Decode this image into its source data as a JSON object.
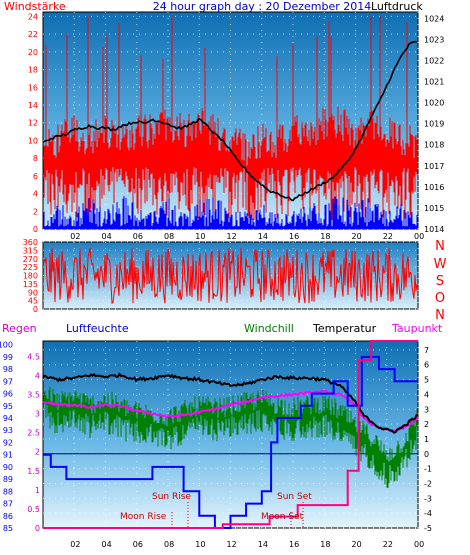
{
  "header": {
    "left_label": "Windstärke",
    "title": "24 hour graph day : 20 Dezember 2014",
    "right_label": "Luftdruck"
  },
  "directions": [
    "N",
    "W",
    "S",
    "O",
    "N"
  ],
  "bottom_header": {
    "regen": "Regen",
    "luftfeuchte": "Luftfeuchte",
    "windchill": "Windchill",
    "temperatur": "Temperatur",
    "taupunkt": "Taupunkt"
  },
  "annotations": {
    "moon_rise": "Moon Rise",
    "sun_rise": "Sun Rise",
    "moon_set": "Moon Set",
    "sun_set": "Sun Set"
  },
  "colors": {
    "wind": "#ff0000",
    "gust": "#0000ff",
    "pressure": "#000000",
    "temperature": "#000000",
    "windchill": "#008000",
    "dewpoint": "#ff00ff",
    "humidity": "#0000ff",
    "rain": "#ff0080",
    "left_axis": "#ff0000",
    "humidity_axis": "#0000ff",
    "rain_label": "#cc00cc"
  },
  "chart_data": [
    {
      "type": "line",
      "panel": "wind_pressure",
      "x_ticks": [
        "02",
        "04",
        "06",
        "08",
        "10",
        "12",
        "14",
        "16",
        "18",
        "20",
        "22",
        "00"
      ],
      "y_left": {
        "label": "Windstärke",
        "ticks": [
          0,
          2,
          4,
          6,
          8,
          10,
          12,
          14,
          16,
          18,
          20,
          22,
          24
        ],
        "range": [
          0,
          24.5
        ]
      },
      "y_right": {
        "label": "Luftdruck",
        "ticks": [
          1014,
          1015,
          1016,
          1017,
          1018,
          1019,
          1020,
          1021,
          1022,
          1023,
          1024
        ],
        "range": [
          1014,
          1024.3
        ]
      },
      "series": [
        {
          "axis": "right",
          "hours": [
            0.0,
            0.5,
            1.0,
            1.5,
            2.0,
            2.5,
            3.0,
            3.5,
            4.0,
            4.5,
            5.0,
            5.5,
            6.0,
            6.5,
            7.0,
            7.5,
            8.0,
            8.5,
            9.0,
            9.5,
            10.0,
            10.5,
            11.0,
            11.5,
            12.0,
            12.5,
            13.0,
            13.5,
            14.0,
            14.5,
            15.0,
            15.5,
            16.0,
            16.5,
            17.0,
            17.5,
            18.0,
            18.5,
            19.0,
            19.5,
            20.0,
            20.5,
            21.0,
            21.5,
            22.0,
            22.5,
            23.0,
            23.5,
            24.0
          ],
          "values": [
            1018.1,
            1018.3,
            1018.4,
            1018.5,
            1018.7,
            1018.8,
            1018.9,
            1018.8,
            1018.8,
            1018.7,
            1018.9,
            1019.0,
            1019.1,
            1019.0,
            1019.2,
            1019.1,
            1019.0,
            1018.8,
            1018.8,
            1019.0,
            1019.2,
            1018.9,
            1018.5,
            1018.2,
            1017.7,
            1017.2,
            1016.8,
            1016.4,
            1016.1,
            1015.8,
            1015.7,
            1015.5,
            1015.4,
            1015.6,
            1015.8,
            1016.0,
            1016.2,
            1016.4,
            1016.8,
            1017.2,
            1017.8,
            1018.5,
            1019.3,
            1020.0,
            1020.8,
            1021.6,
            1022.3,
            1022.8,
            1022.9
          ]
        },
        {
          "axis": "left",
          "name": "",
          "hours": [
            0.0,
            1.0,
            2.0,
            3.0,
            4.0,
            5.0,
            6.0,
            7.0,
            8.0,
            9.0,
            10.0,
            11.0,
            12.0,
            13.0,
            14.0,
            15.0,
            16.0,
            17.0,
            18.0,
            19.0,
            20.0,
            21.0,
            22.0,
            23.0,
            24.0
          ],
          "values": [
            7,
            8,
            9,
            8,
            9,
            8,
            9,
            9,
            10,
            9,
            10,
            9,
            8,
            7,
            8,
            8,
            9,
            9,
            10,
            10,
            9,
            10,
            9,
            8,
            8
          ]
        },
        {
          "axis": "left",
          "name": "",
          "hours": [
            0.0,
            1.0,
            2.0,
            3.0,
            4.0,
            5.0,
            6.0,
            7.0,
            8.0,
            9.0,
            10.0,
            11.0,
            12.0,
            13.0,
            14.0,
            15.0,
            16.0,
            17.0,
            18.0,
            19.0,
            20.0,
            21.0,
            22.0,
            23.0,
            24.0
          ],
          "values": [
            1,
            1.5,
            1,
            2,
            1,
            2,
            1.5,
            1,
            2,
            1,
            2,
            2,
            1,
            1,
            1.5,
            1,
            1,
            1.5,
            2,
            2,
            1.5,
            2,
            1,
            1.5,
            1
          ]
        }
      ]
    },
    {
      "type": "line",
      "panel": "wind_direction",
      "x_ticks": [],
      "y_ticks": [
        0,
        45,
        90,
        135,
        180,
        225,
        270,
        315,
        360
      ],
      "y_range": [
        0,
        360
      ],
      "series": [
        {
          "name": "",
          "hours": [
            0,
            2,
            4,
            6,
            8,
            10,
            12,
            14,
            16,
            18,
            20,
            22,
            24
          ],
          "values": [
            200,
            180,
            190,
            170,
            200,
            180,
            190,
            180,
            200,
            190,
            180,
            190,
            200
          ]
        }
      ]
    },
    {
      "type": "line",
      "panel": "temperature_humidity_rain",
      "x_ticks": [
        "02",
        "04",
        "06",
        "08",
        "10",
        "12",
        "14",
        "16",
        "18",
        "20",
        "22",
        "00"
      ],
      "y_rain": {
        "ticks": [
          0,
          0.5,
          1,
          1.5,
          2,
          2.5,
          3,
          3.5,
          4,
          4.5
        ],
        "range": [
          0,
          4.9
        ]
      },
      "y_humidity": {
        "ticks": [
          85,
          86,
          87,
          88,
          89,
          90,
          91,
          92,
          93,
          94,
          95,
          96,
          97,
          98,
          99,
          100
        ],
        "range": [
          85,
          100.3
        ]
      },
      "y_temp": {
        "ticks": [
          -5,
          -4,
          -3,
          -2,
          -1,
          0,
          1,
          2,
          3,
          4,
          5,
          6,
          7
        ],
        "range": [
          -5,
          7.6
        ]
      },
      "series": [
        {
          "name": "Temperatur",
          "axis": "temp",
          "hours": [
            0,
            1,
            2,
            3,
            4,
            5,
            6,
            7,
            8,
            9,
            10,
            11,
            12,
            13,
            14,
            15,
            16,
            17,
            18,
            19,
            20,
            20.5,
            21,
            21.5,
            22,
            22.5,
            23,
            23.5,
            24
          ],
          "values": [
            5.2,
            5.0,
            5.1,
            5.3,
            5.2,
            5.3,
            5.0,
            5.1,
            5.3,
            5.1,
            5.0,
            4.8,
            4.6,
            4.7,
            5.0,
            5.2,
            5.1,
            5.1,
            5.0,
            4.6,
            3.5,
            2.6,
            2.2,
            1.8,
            1.6,
            1.5,
            1.8,
            2.2,
            2.6
          ]
        },
        {
          "name": "Windchill",
          "axis": "temp",
          "hours": [
            0,
            1,
            2,
            3,
            4,
            5,
            6,
            7,
            8,
            9,
            10,
            11,
            12,
            13,
            14,
            15,
            16,
            17,
            18,
            19,
            20,
            21,
            22,
            23,
            24
          ],
          "values": [
            3.5,
            2.8,
            3.2,
            2.6,
            3.0,
            2.5,
            2.2,
            2.0,
            1.8,
            2.2,
            2.6,
            2.4,
            2.5,
            2.8,
            3.0,
            2.6,
            2.4,
            2.6,
            2.7,
            2.2,
            1.2,
            0.5,
            -0.8,
            0.0,
            2.0
          ]
        },
        {
          "name": "Taupunkt",
          "axis": "temp",
          "hours": [
            0,
            1,
            2,
            3,
            4,
            5,
            6,
            7,
            8,
            9,
            10,
            11,
            12,
            13,
            14,
            15,
            16,
            17,
            18,
            19,
            20,
            20.5,
            21,
            21.5,
            22,
            22.5,
            23,
            23.5,
            24
          ],
          "values": [
            3.5,
            3.3,
            3.3,
            3.1,
            3.3,
            3.2,
            2.9,
            2.7,
            2.5,
            2.6,
            2.8,
            3.0,
            3.3,
            3.5,
            3.8,
            3.9,
            4.0,
            4.1,
            4.2,
            4.0,
            3.3,
            2.4,
            2.0,
            1.8,
            1.6,
            1.5,
            1.7,
            2.0,
            2.4
          ]
        },
        {
          "name": "Luftfeuchte",
          "axis": "humidity",
          "hours": [
            0,
            0.5,
            0.5,
            1.5,
            1.5,
            4.0,
            4.0,
            7.0,
            7.0,
            9.0,
            9.0,
            10.0,
            10.0,
            11.0,
            11.0,
            12.0,
            12.0,
            13.0,
            13.0,
            14.0,
            14.0,
            14.6,
            14.6,
            15.0,
            15.0,
            16.5,
            16.5,
            17.2,
            17.2,
            18.6,
            18.6,
            19.5,
            19.5,
            20.4,
            20.4,
            21.5,
            21.5,
            22.5,
            22.5,
            24.0
          ],
          "values": [
            91,
            91,
            90,
            90,
            89,
            89,
            89,
            89,
            90,
            90,
            88,
            88,
            86,
            86,
            85,
            85,
            86,
            86,
            87,
            87,
            88,
            88,
            92,
            92,
            94,
            94,
            95,
            95,
            96,
            96,
            97,
            97,
            95,
            95,
            99,
            99,
            98,
            98,
            97,
            97
          ]
        },
        {
          "name": "Regen",
          "axis": "rain",
          "hours": [
            0,
            11.5,
            11.5,
            14.5,
            14.5,
            16.3,
            16.3,
            19.5,
            19.5,
            20.2,
            20.2,
            21.0,
            21.0,
            21.5,
            21.5,
            24.0
          ],
          "values": [
            0,
            0,
            0.1,
            0.1,
            0.3,
            0.3,
            0.6,
            0.6,
            1.5,
            1.5,
            4.4,
            4.4,
            4.9,
            4.9,
            4.9,
            4.9
          ]
        }
      ]
    }
  ]
}
